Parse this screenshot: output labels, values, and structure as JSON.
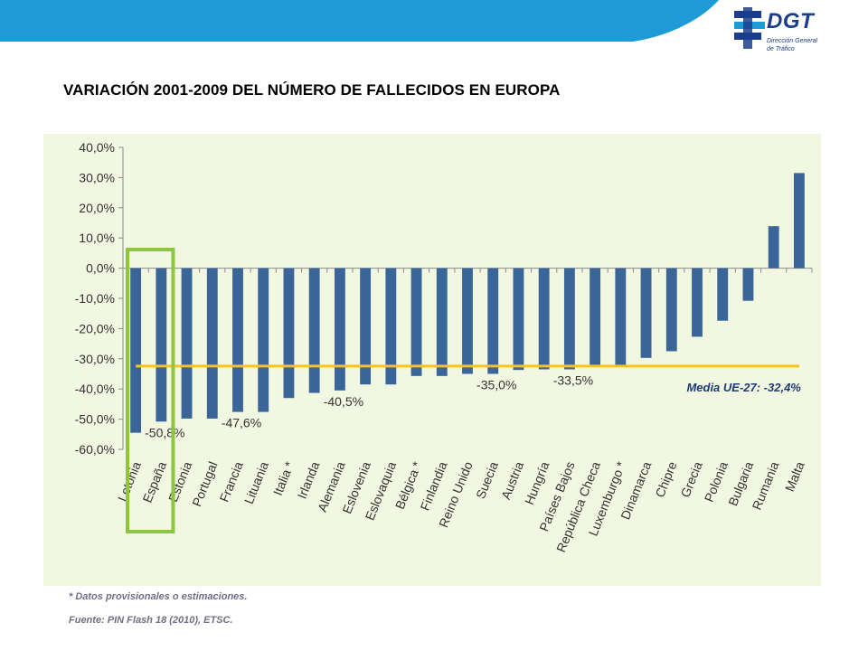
{
  "header": {
    "logo_text": "DGT",
    "logo_subtitle_1": "Dirección General",
    "logo_subtitle_2": "de Tráfico"
  },
  "page_title": "VARIACIÓN 2001-2009 DEL NÚMERO DE FALLECIDOS EN EUROPA",
  "footnotes": {
    "provisional": "* Datos provisionales o estimaciones.",
    "source": "Fuente: PIN Flash 18 (2010), ETSC."
  },
  "colors": {
    "bar": "#3a6598",
    "average_line": "#f5c518",
    "highlight_box": "#8dc63f",
    "background": "#f2f7e2",
    "top_band": "#1e9ad6"
  },
  "chart_data": {
    "type": "bar",
    "title": "",
    "xlabel": "",
    "ylabel": "",
    "ylim": [
      -60,
      40
    ],
    "y_ticks": [
      "40,0%",
      "30,0%",
      "20,0%",
      "10,0%",
      "0,0%",
      "-10,0%",
      "-20,0%",
      "-30,0%",
      "-40,0%",
      "-50,0%",
      "-60,0%"
    ],
    "categories": [
      "Letonia",
      "España",
      "Estonia",
      "Portugal",
      "Francia",
      "Lituania",
      "Italia *",
      "Irlanda",
      "Alemania",
      "Eslovenia",
      "Eslovaquia",
      "Bélgica *",
      "Finlandia",
      "Reino Unido",
      "Suecia",
      "Austria",
      "Hungría",
      "Países Bajos",
      "República Checa",
      "Luxemburgo *",
      "Dinamarca",
      "Chipre",
      "Grecia",
      "Polonia",
      "Bulgaria",
      "Rumania",
      "Malta"
    ],
    "values": [
      -54.5,
      -50.8,
      -49.8,
      -49.8,
      -47.6,
      -47.6,
      -43.0,
      -41.3,
      -40.5,
      -38.5,
      -38.5,
      -35.7,
      -35.7,
      -35.0,
      -35.0,
      -33.7,
      -33.5,
      -33.5,
      -32.4,
      -32.4,
      -29.7,
      -27.5,
      -22.7,
      -17.4,
      -10.8,
      13.9,
      31.5
    ],
    "data_labels": [
      {
        "category": "España",
        "text": "-50,8%"
      },
      {
        "category": "Francia",
        "text": "-47,6%"
      },
      {
        "category": "Alemania",
        "text": "-40,5%"
      },
      {
        "category": "Suecia",
        "text": "-35,0%"
      },
      {
        "category": "Países Bajos",
        "text": "-33,5%"
      }
    ],
    "reference_line": {
      "value": -32.4,
      "label": "Media UE-27: -32,4%"
    },
    "highlight": [
      "Letonia",
      "España"
    ],
    "grid": false,
    "legend": "none"
  }
}
